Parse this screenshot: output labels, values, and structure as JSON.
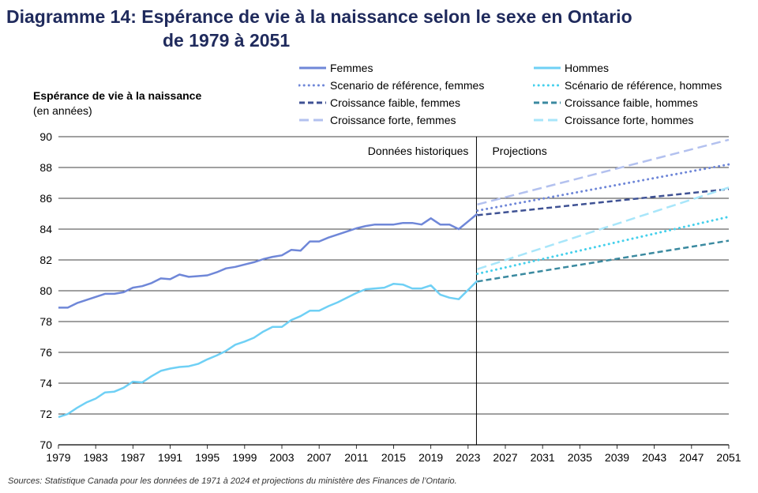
{
  "title": {
    "line1": "Diagramme 14: Espérance de vie à la naissance selon le sexe en Ontario",
    "line2": "de 1979 à 2051"
  },
  "source": "Sources: Statistique Canada pour les données de 1971 à 2024 et projections du ministère des Finances de l’Ontario.",
  "chart_data": {
    "type": "line",
    "title": "Diagramme 14: Espérance de vie à la naissance selon le sexe en Ontario de 1979 à 2051",
    "ylabel": "Espérance de vie à la naissance",
    "ylabel_unit": "(en années)",
    "xlabel": "",
    "xlim": [
      1979,
      2051
    ],
    "ylim": [
      70,
      90
    ],
    "y_ticks": [
      70,
      72,
      74,
      76,
      78,
      80,
      82,
      84,
      86,
      88,
      90
    ],
    "x_ticks": [
      1979,
      1983,
      1987,
      1991,
      1995,
      1999,
      2003,
      2007,
      2011,
      2015,
      2019,
      2023,
      2027,
      2031,
      2035,
      2039,
      2043,
      2047,
      2051
    ],
    "grid": "horizontal",
    "legend_position": "top",
    "divider_year": 2023.9,
    "regions": {
      "historical": "Données historiques",
      "projection": "Projections"
    },
    "series": [
      {
        "name": "Femmes",
        "style": "solid",
        "color": "#6f87d8",
        "x": [
          1979,
          1980,
          1981,
          1982,
          1983,
          1984,
          1985,
          1986,
          1987,
          1988,
          1989,
          1990,
          1991,
          1992,
          1993,
          1994,
          1995,
          1996,
          1997,
          1998,
          1999,
          2000,
          2001,
          2002,
          2003,
          2004,
          2005,
          2006,
          2007,
          2008,
          2009,
          2010,
          2011,
          2012,
          2013,
          2014,
          2015,
          2016,
          2017,
          2018,
          2019,
          2020,
          2021,
          2022,
          2023,
          2024
        ],
        "values": [
          78.9,
          78.9,
          79.2,
          79.4,
          79.6,
          79.8,
          79.8,
          79.9,
          80.2,
          80.3,
          80.5,
          80.8,
          80.75,
          81.05,
          80.9,
          80.95,
          81.0,
          81.2,
          81.45,
          81.55,
          81.7,
          81.85,
          82.05,
          82.2,
          82.3,
          82.65,
          82.6,
          83.2,
          83.2,
          83.45,
          83.65,
          83.85,
          84.05,
          84.2,
          84.3,
          84.3,
          84.3,
          84.4,
          84.4,
          84.3,
          84.7,
          84.3,
          84.3,
          84.0,
          84.5,
          85.0
        ]
      },
      {
        "name": "Hommes",
        "style": "solid",
        "color": "#6fd0f5",
        "x": [
          1979,
          1980,
          1981,
          1982,
          1983,
          1984,
          1985,
          1986,
          1987,
          1988,
          1989,
          1990,
          1991,
          1992,
          1993,
          1994,
          1995,
          1996,
          1997,
          1998,
          1999,
          2000,
          2001,
          2002,
          2003,
          2004,
          2005,
          2006,
          2007,
          2008,
          2009,
          2010,
          2011,
          2012,
          2013,
          2014,
          2015,
          2016,
          2017,
          2018,
          2019,
          2020,
          2021,
          2022,
          2023,
          2024
        ],
        "values": [
          71.8,
          72.0,
          72.4,
          72.75,
          73.0,
          73.4,
          73.45,
          73.7,
          74.1,
          74.05,
          74.45,
          74.8,
          74.95,
          75.05,
          75.1,
          75.25,
          75.55,
          75.8,
          76.1,
          76.5,
          76.7,
          76.95,
          77.35,
          77.65,
          77.65,
          78.1,
          78.35,
          78.7,
          78.7,
          79.0,
          79.25,
          79.55,
          79.85,
          80.1,
          80.15,
          80.2,
          80.45,
          80.4,
          80.15,
          80.15,
          80.35,
          79.75,
          79.55,
          79.45,
          80.05,
          80.65
        ]
      },
      {
        "name": "Scenario de référence, femmes",
        "style": "dotted",
        "color": "#6f87d8",
        "x": [
          2024,
          2051
        ],
        "values": [
          85.2,
          88.2
        ]
      },
      {
        "name": "Croissance faible, femmes",
        "style": "dashed",
        "color": "#3f5294",
        "x": [
          2024,
          2051
        ],
        "values": [
          84.9,
          86.6
        ]
      },
      {
        "name": "Croissance forte, femmes",
        "style": "longdash",
        "color": "#b3c1ef",
        "x": [
          2024,
          2051
        ],
        "values": [
          85.6,
          89.8
        ]
      },
      {
        "name": "Scénario de référence, hommes",
        "style": "dotted",
        "color": "#45d0ec",
        "x": [
          2024,
          2051
        ],
        "values": [
          81.1,
          84.8
        ]
      },
      {
        "name": "Croissance faible, hommes",
        "style": "dashed",
        "color": "#3b8aa0",
        "x": [
          2024,
          2051
        ],
        "values": [
          80.6,
          83.25
        ]
      },
      {
        "name": "Croissance forte, hommes",
        "style": "longdash",
        "color": "#a8e6fa",
        "x": [
          2024,
          2051
        ],
        "values": [
          81.4,
          86.7
        ]
      }
    ]
  }
}
